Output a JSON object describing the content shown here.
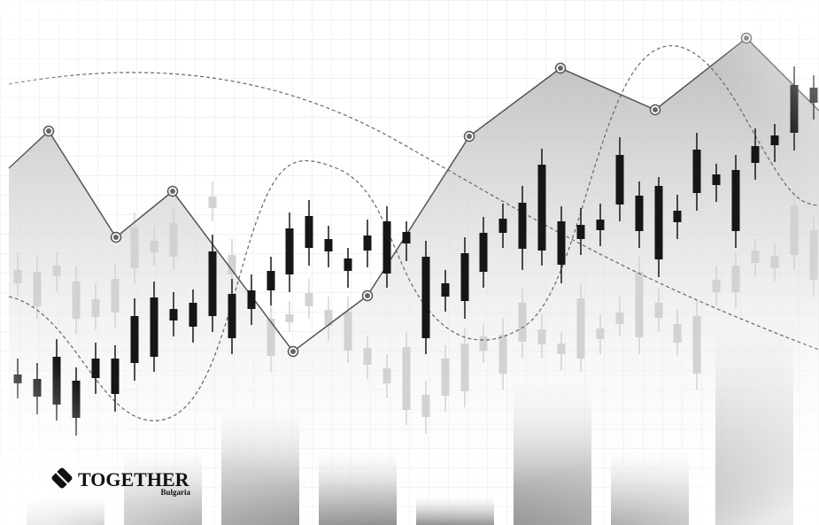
{
  "logo": {
    "name": "TOGETHER",
    "subtitle": "Bulgaria"
  }
}
